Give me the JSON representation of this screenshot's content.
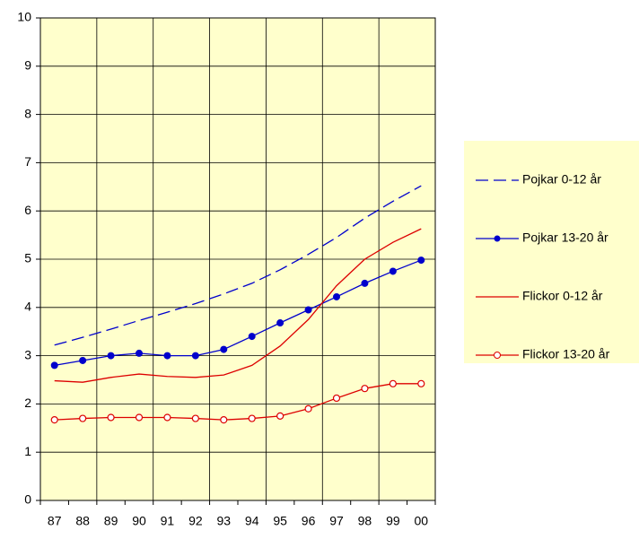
{
  "chart_data": {
    "type": "line",
    "categories": [
      "87",
      "88",
      "89",
      "90",
      "91",
      "92",
      "93",
      "94",
      "95",
      "96",
      "97",
      "98",
      "99",
      "00"
    ],
    "ylim": [
      0,
      10
    ],
    "yticks": [
      0,
      1,
      2,
      3,
      4,
      5,
      6,
      7,
      8,
      9,
      10
    ],
    "grid": true,
    "legend": "right",
    "series": [
      {
        "name": "Pojkar 0-12 år",
        "color": "#0000cc",
        "line_style": "dashed",
        "marker": "none",
        "values": [
          3.22,
          3.38,
          3.55,
          3.73,
          3.9,
          4.08,
          4.28,
          4.5,
          4.78,
          5.1,
          5.45,
          5.85,
          6.2,
          6.52
        ]
      },
      {
        "name": "Pojkar 13-20 år",
        "color": "#0000cc",
        "line_style": "solid",
        "marker": "filled-circle",
        "values": [
          2.8,
          2.9,
          3.0,
          3.05,
          3.0,
          3.0,
          3.13,
          3.4,
          3.68,
          3.95,
          4.22,
          4.5,
          4.75,
          4.98
        ]
      },
      {
        "name": "Flickor 0-12 år",
        "color": "#dd0000",
        "line_style": "solid",
        "marker": "none",
        "values": [
          2.48,
          2.45,
          2.55,
          2.62,
          2.57,
          2.55,
          2.6,
          2.8,
          3.2,
          3.75,
          4.45,
          5.0,
          5.35,
          5.63
        ]
      },
      {
        "name": "Flickor 13-20 år",
        "color": "#dd0000",
        "line_style": "solid",
        "marker": "open-circle",
        "values": [
          1.67,
          1.7,
          1.72,
          1.72,
          1.72,
          1.7,
          1.67,
          1.7,
          1.75,
          1.9,
          2.12,
          2.32,
          2.42,
          2.42
        ]
      }
    ]
  }
}
